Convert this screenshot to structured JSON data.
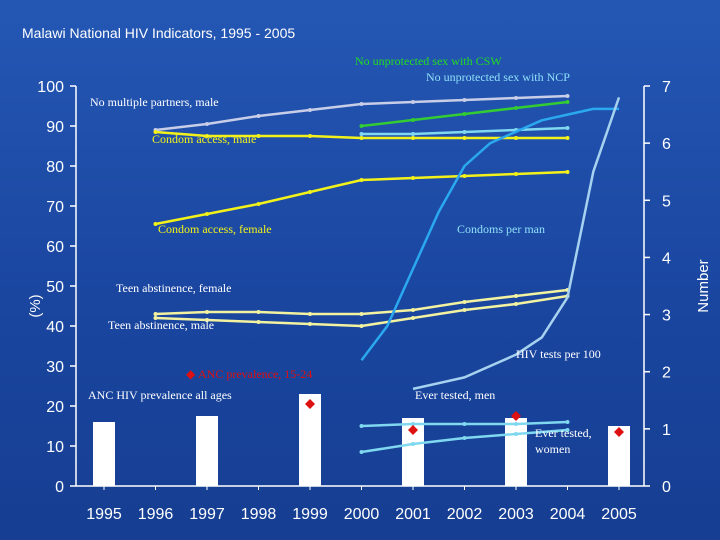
{
  "title": "Malawi National HIV Indicators, 1995 - 2005",
  "chart_data": {
    "type": "line",
    "categories": [
      "1995",
      "1996",
      "1997",
      "1998",
      "1999",
      "2000",
      "2001",
      "2002",
      "2003",
      "2004",
      "2005"
    ],
    "left_axis": {
      "label": "(%)",
      "range": [
        0,
        100
      ],
      "ticks": [
        "0",
        "10",
        "20",
        "30",
        "40",
        "50",
        "60",
        "70",
        "80",
        "90",
        "100"
      ]
    },
    "right_axis": {
      "label": "Number",
      "range": [
        0,
        7
      ],
      "ticks": [
        "0",
        "1",
        "2",
        "3",
        "4",
        "5",
        "6",
        "7"
      ]
    },
    "grid": false,
    "bars": {
      "name": "ANC HIV prevalence all ages",
      "color": "#ffffff",
      "x": [
        "1995",
        "1997",
        "1999",
        "2001",
        "2003",
        "2005"
      ],
      "values": [
        16,
        17.5,
        23,
        17,
        17,
        15
      ]
    },
    "series": [
      {
        "name": "No multiple partners, male",
        "axis": "left",
        "color": "#c8cde8",
        "x": [
          "1996",
          "1997",
          "1998",
          "1999",
          "2000",
          "2001",
          "2002",
          "2003",
          "2004"
        ],
        "values": [
          89,
          90.5,
          92.5,
          94,
          95.5,
          96,
          96.5,
          97,
          97.5
        ]
      },
      {
        "name": "No unprotected sex with CSW",
        "axis": "left",
        "color": "#33cc33",
        "x": [
          "2000",
          "2001",
          "2002",
          "2003",
          "2004"
        ],
        "values": [
          90,
          91.5,
          93,
          94.5,
          96
        ]
      },
      {
        "name": "No unprotected sex with NCP",
        "axis": "left",
        "color": "#7fd8f0",
        "x": [
          "2000",
          "2001",
          "2002",
          "2003",
          "2004"
        ],
        "values": [
          88,
          88,
          88.5,
          89,
          89.5
        ]
      },
      {
        "name": "Condom access, male",
        "axis": "left",
        "color": "#f2f21a",
        "x": [
          "1996",
          "1997",
          "1998",
          "1999",
          "2000",
          "2001",
          "2002",
          "2003",
          "2004"
        ],
        "values": [
          88.5,
          87.5,
          87.5,
          87.5,
          87,
          87,
          87,
          87,
          87
        ]
      },
      {
        "name": "Condom access, female",
        "axis": "left",
        "color": "#f2f21a",
        "x": [
          "1996",
          "1997",
          "1998",
          "1999",
          "2000",
          "2001",
          "2002",
          "2003",
          "2004"
        ],
        "values": [
          65.5,
          68,
          70.5,
          73.5,
          76.5,
          77,
          77.5,
          78,
          78.5
        ]
      },
      {
        "name": "Teen abstinence, female",
        "axis": "left",
        "color": "#f2f2a0",
        "x": [
          "1996",
          "1997",
          "1998",
          "1999",
          "2000",
          "2001",
          "2002",
          "2003",
          "2004"
        ],
        "values": [
          43,
          43.5,
          43.5,
          43,
          43,
          44,
          46,
          47.5,
          49
        ]
      },
      {
        "name": "Teen abstinence, male",
        "axis": "left",
        "color": "#f2f2a0",
        "x": [
          "1996",
          "1997",
          "1998",
          "1999",
          "2000",
          "2001",
          "2002",
          "2003",
          "2004"
        ],
        "values": [
          42,
          41.5,
          41,
          40.5,
          40,
          42,
          44,
          45.5,
          47.5
        ]
      },
      {
        "name": "Condoms per man",
        "axis": "right",
        "color": "#2aa8f0",
        "x": [
          "2000",
          "2000.5",
          "2001",
          "2001.5",
          "2002",
          "2002.5",
          "2003",
          "2003.5",
          "2004",
          "2004.5",
          "2005"
        ],
        "values": [
          2.2,
          2.8,
          3.8,
          4.8,
          5.6,
          6.0,
          6.2,
          6.4,
          6.5,
          6.6,
          6.6
        ]
      },
      {
        "name": "HIV tests per 100",
        "axis": "right",
        "color": "#a6d2f0",
        "x": [
          "2001",
          "2002",
          "2003",
          "2003.5",
          "2004",
          "2004.5",
          "2005"
        ],
        "values": [
          1.7,
          1.9,
          2.3,
          2.6,
          3.3,
          5.5,
          6.8
        ]
      },
      {
        "name": "Ever tested, men",
        "axis": "left",
        "color": "#7fd8f0",
        "x": [
          "2000",
          "2001",
          "2002",
          "2003",
          "2004"
        ],
        "values": [
          15,
          15.5,
          15.5,
          15.5,
          16
        ]
      },
      {
        "name": "Ever tested, women",
        "axis": "left",
        "color": "#7fd8f0",
        "x": [
          "2000",
          "2001",
          "2002",
          "2003",
          "2004"
        ],
        "values": [
          8.5,
          10.5,
          12,
          13,
          14
        ]
      }
    ],
    "markers": {
      "name": "ANC prevalence, 15-24",
      "color": "#dd1111",
      "x": [
        "1999",
        "2001",
        "2003",
        "2005"
      ],
      "values": [
        20.5,
        14,
        17.5,
        13.5
      ]
    },
    "labels": {
      "no_multiple_partners_male": "No multiple partners, male",
      "no_unprotected_csw": "No unprotected sex with CSW",
      "no_unprotected_ncp": "No unprotected sex with NCP",
      "condom_access_male": "Condom access, male",
      "condom_access_female": "Condom access, female",
      "condoms_per_man": "Condoms per man",
      "teen_abstinence_female": "Teen abstinence, female",
      "teen_abstinence_male": "Teen abstinence, male",
      "hiv_tests_per_100": "HIV tests per 100",
      "anc_prevalence_15_24": "ANC prevalence, 15-24",
      "anc_hiv_prevalence_all_ages": "ANC HIV prevalence all ages",
      "ever_tested_men": "Ever tested, men",
      "ever_tested_women_line1": "Ever tested,",
      "ever_tested_women_line2": "women"
    }
  }
}
